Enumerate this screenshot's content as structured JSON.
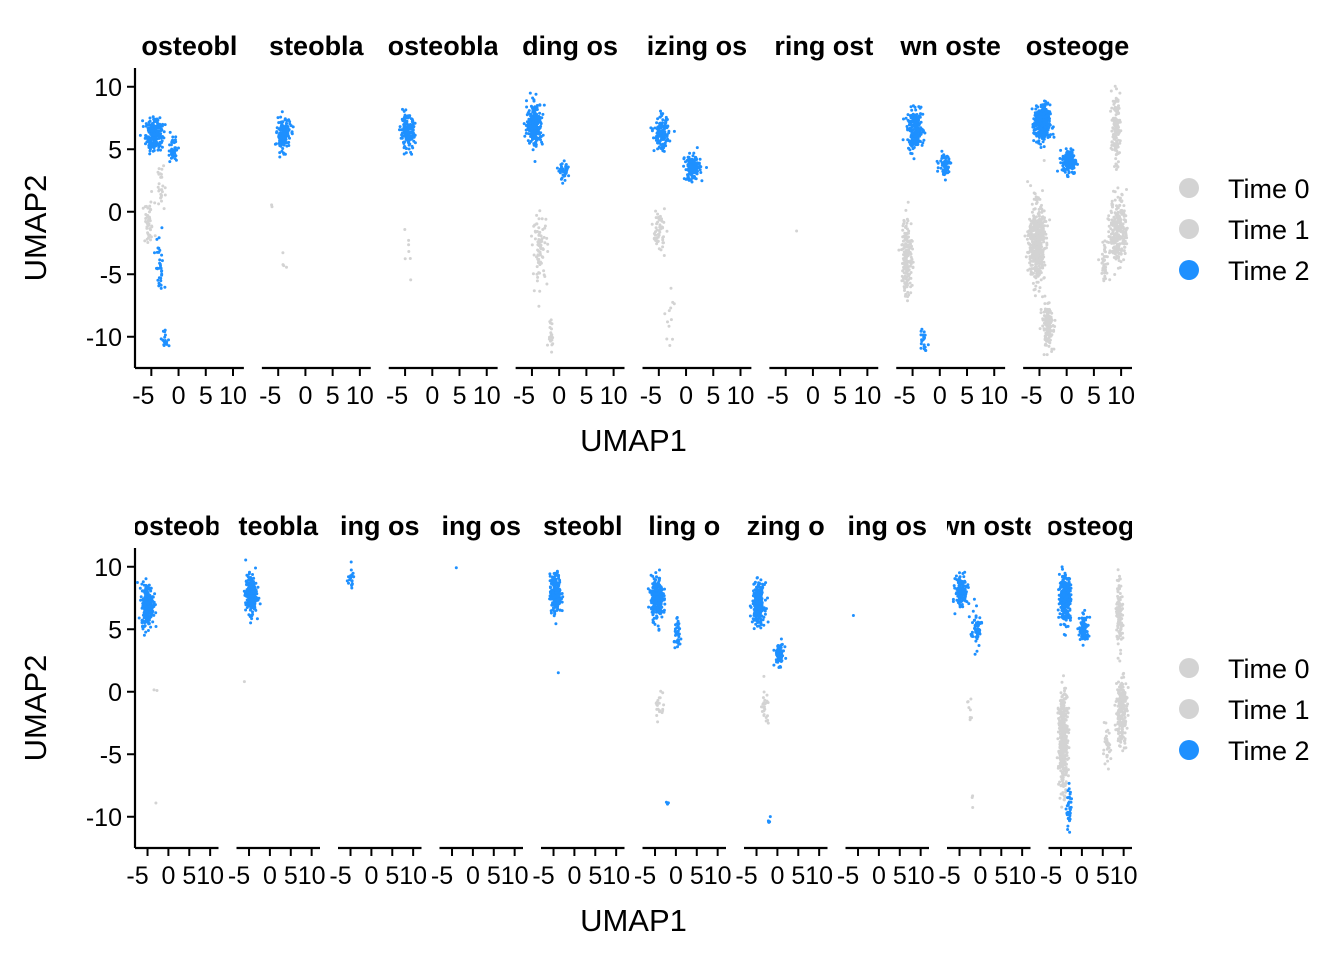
{
  "colors": {
    "time0": "#d3d3d3",
    "time1": "#d3d3d3",
    "time2": "#1e90ff",
    "axis": "#000000"
  },
  "legend": {
    "placement": "right",
    "entries": [
      "Time 0",
      "Time 1",
      "Time 2"
    ]
  },
  "chart_data": [
    {
      "type": "scatter",
      "xlabel": "UMAP1",
      "ylabel": "UMAP2",
      "xlim": [
        -8,
        12
      ],
      "ylim": [
        -12.5,
        11.5
      ],
      "x_ticks": [
        -5,
        0,
        5,
        10
      ],
      "x_tick_labels": [
        "-5",
        "0",
        "5",
        "10"
      ],
      "y_ticks": [
        -10,
        -5,
        0,
        5,
        10
      ],
      "y_tick_labels": [
        "-10",
        "-5",
        "0",
        "5",
        "10"
      ],
      "legend": [
        "Time 0",
        "Time 1",
        "Time 2"
      ],
      "panels": [
        {
          "title": "osteobl",
          "clusters": [
            {
              "t": 2,
              "x": -4.5,
              "y": 6.2,
              "sx": 1.4,
              "sy": 1.2,
              "n": 220
            },
            {
              "t": 2,
              "x": -1.0,
              "y": 5.0,
              "sx": 0.8,
              "sy": 0.9,
              "n": 40
            },
            {
              "t": 0,
              "x": -5.5,
              "y": -1.0,
              "sx": 1.0,
              "sy": 1.6,
              "n": 45
            },
            {
              "t": 0,
              "x": -3.2,
              "y": 2.0,
              "sx": 0.6,
              "sy": 1.5,
              "n": 25
            },
            {
              "t": 2,
              "x": -3.5,
              "y": -4.5,
              "sx": 0.7,
              "sy": 2.5,
              "n": 35
            },
            {
              "t": 2,
              "x": -2.5,
              "y": -10.2,
              "sx": 0.5,
              "sy": 0.8,
              "n": 18
            }
          ]
        },
        {
          "title": "steobla",
          "clusters": [
            {
              "t": 2,
              "x": -4.0,
              "y": 6.2,
              "sx": 1.1,
              "sy": 1.1,
              "n": 160
            },
            {
              "t": 0,
              "x": -6.5,
              "y": 0.3,
              "sx": 0.4,
              "sy": 0.4,
              "n": 2
            },
            {
              "t": 0,
              "x": -4.0,
              "y": -4.5,
              "sx": 0.6,
              "sy": 2.0,
              "n": 4
            }
          ]
        },
        {
          "title": "osteobla",
          "clusters": [
            {
              "t": 2,
              "x": -4.5,
              "y": 6.3,
              "sx": 1.2,
              "sy": 1.2,
              "n": 170
            },
            {
              "t": 0,
              "x": -4.5,
              "y": -3.5,
              "sx": 0.7,
              "sy": 2.0,
              "n": 7
            }
          ]
        },
        {
          "title": "ding os",
          "clusters": [
            {
              "t": 2,
              "x": -4.5,
              "y": 7.0,
              "sx": 1.3,
              "sy": 1.6,
              "n": 240
            },
            {
              "t": 2,
              "x": 1.0,
              "y": 3.2,
              "sx": 0.8,
              "sy": 0.6,
              "n": 40
            },
            {
              "t": 0,
              "x": -3.5,
              "y": -3.0,
              "sx": 1.2,
              "sy": 2.5,
              "n": 80
            },
            {
              "t": 0,
              "x": -1.5,
              "y": -9.5,
              "sx": 0.5,
              "sy": 1.2,
              "n": 20
            }
          ]
        },
        {
          "title": "izing os",
          "clusters": [
            {
              "t": 2,
              "x": -4.5,
              "y": 6.2,
              "sx": 1.2,
              "sy": 1.2,
              "n": 140
            },
            {
              "t": 2,
              "x": 1.2,
              "y": 3.5,
              "sx": 1.3,
              "sy": 0.9,
              "n": 160
            },
            {
              "t": 0,
              "x": -5.0,
              "y": -1.5,
              "sx": 1.0,
              "sy": 1.5,
              "n": 55
            },
            {
              "t": 0,
              "x": -3.0,
              "y": -8.0,
              "sx": 1.0,
              "sy": 2.0,
              "n": 12
            }
          ]
        },
        {
          "title": "ring ost",
          "clusters": [
            {
              "t": 0,
              "x": -3.0,
              "y": -1.8,
              "sx": 0.2,
              "sy": 0.2,
              "n": 1
            }
          ]
        },
        {
          "title": "wn oste",
          "clusters": [
            {
              "t": 2,
              "x": -4.5,
              "y": 6.5,
              "sx": 1.3,
              "sy": 1.4,
              "n": 200
            },
            {
              "t": 2,
              "x": 1.0,
              "y": 3.8,
              "sx": 1.0,
              "sy": 0.8,
              "n": 70
            },
            {
              "t": 0,
              "x": -6.0,
              "y": -3.5,
              "sx": 0.9,
              "sy": 3.0,
              "n": 170
            },
            {
              "t": 2,
              "x": -3.0,
              "y": -10.0,
              "sx": 0.6,
              "sy": 1.0,
              "n": 22
            }
          ]
        },
        {
          "title": "osteoge",
          "clusters": [
            {
              "t": 2,
              "x": -4.5,
              "y": 7.0,
              "sx": 1.3,
              "sy": 1.4,
              "n": 320
            },
            {
              "t": 2,
              "x": 0.5,
              "y": 4.0,
              "sx": 1.2,
              "sy": 0.9,
              "n": 160
            },
            {
              "t": 0,
              "x": -5.5,
              "y": -2.5,
              "sx": 1.3,
              "sy": 2.8,
              "n": 500
            },
            {
              "t": 0,
              "x": -3.5,
              "y": -9.0,
              "sx": 0.9,
              "sy": 1.6,
              "n": 150
            },
            {
              "t": 0,
              "x": 9.0,
              "y": 6.5,
              "sx": 0.7,
              "sy": 2.5,
              "n": 130
            },
            {
              "t": 0,
              "x": 9.5,
              "y": -1.5,
              "sx": 1.4,
              "sy": 2.5,
              "n": 250
            },
            {
              "t": 0,
              "x": 7.0,
              "y": -4.0,
              "sx": 0.7,
              "sy": 1.5,
              "n": 40
            }
          ]
        }
      ]
    },
    {
      "type": "scatter",
      "xlabel": "UMAP1",
      "ylabel": "UMAP2",
      "xlim": [
        -8,
        12
      ],
      "ylim": [
        -12.5,
        11.5
      ],
      "x_ticks": [
        -5,
        0,
        5,
        10
      ],
      "x_tick_labels": [
        "-5",
        "0",
        "5",
        "10"
      ],
      "y_ticks": [
        -10,
        -5,
        0,
        5,
        10
      ],
      "y_tick_labels": [
        "-10",
        "-5",
        "0",
        "5",
        "10"
      ],
      "legend": [
        "Time 0",
        "Time 1",
        "Time 2"
      ],
      "panels": [
        {
          "title": "osteob",
          "clusters": [
            {
              "t": 2,
              "x": -5.0,
              "y": 7.0,
              "sx": 1.3,
              "sy": 1.5,
              "n": 260
            },
            {
              "t": 0,
              "x": -3.0,
              "y": 0.0,
              "sx": 0.4,
              "sy": 0.5,
              "n": 2
            },
            {
              "t": 0,
              "x": -3.0,
              "y": -9.0,
              "sx": 0.2,
              "sy": 0.2,
              "n": 1
            }
          ]
        },
        {
          "title": "teobla",
          "clusters": [
            {
              "t": 2,
              "x": -4.5,
              "y": 7.8,
              "sx": 1.2,
              "sy": 1.4,
              "n": 260
            },
            {
              "t": 0,
              "x": -6.0,
              "y": 0.8,
              "sx": 0.2,
              "sy": 0.2,
              "n": 1
            }
          ]
        },
        {
          "title": "ing os",
          "clusters": [
            {
              "t": 2,
              "x": -5.0,
              "y": 9.0,
              "sx": 0.8,
              "sy": 0.7,
              "n": 20
            }
          ]
        },
        {
          "title": "ing os",
          "clusters": [
            {
              "t": 2,
              "x": -4.0,
              "y": 10.0,
              "sx": 0.2,
              "sy": 0.2,
              "n": 1
            }
          ]
        },
        {
          "title": "steobl",
          "clusters": [
            {
              "t": 2,
              "x": -4.5,
              "y": 7.8,
              "sx": 1.2,
              "sy": 1.4,
              "n": 230
            },
            {
              "t": 2,
              "x": -4.0,
              "y": 1.3,
              "sx": 0.3,
              "sy": 0.3,
              "n": 1
            }
          ]
        },
        {
          "title": "ling o",
          "clusters": [
            {
              "t": 2,
              "x": -4.5,
              "y": 7.5,
              "sx": 1.3,
              "sy": 1.5,
              "n": 260
            },
            {
              "t": 2,
              "x": 0.5,
              "y": 4.5,
              "sx": 0.8,
              "sy": 1.0,
              "n": 40
            },
            {
              "t": 0,
              "x": -4.0,
              "y": -1.0,
              "sx": 0.9,
              "sy": 1.3,
              "n": 20
            },
            {
              "t": 2,
              "x": -2.0,
              "y": -9.0,
              "sx": 0.3,
              "sy": 0.3,
              "n": 3
            }
          ]
        },
        {
          "title": "zing o",
          "clusters": [
            {
              "t": 2,
              "x": -4.5,
              "y": 7.0,
              "sx": 1.3,
              "sy": 1.5,
              "n": 240
            },
            {
              "t": 2,
              "x": 0.5,
              "y": 3.0,
              "sx": 1.0,
              "sy": 0.8,
              "n": 80
            },
            {
              "t": 0,
              "x": -3.0,
              "y": -1.5,
              "sx": 1.0,
              "sy": 1.5,
              "n": 25
            },
            {
              "t": 2,
              "x": -2.0,
              "y": -10.3,
              "sx": 0.3,
              "sy": 0.4,
              "n": 5
            }
          ]
        },
        {
          "title": "ing os",
          "clusters": [
            {
              "t": 2,
              "x": -6.0,
              "y": 6.2,
              "sx": 0.2,
              "sy": 0.2,
              "n": 1
            }
          ]
        },
        {
          "title": "wn oste",
          "clusters": [
            {
              "t": 2,
              "x": -4.5,
              "y": 8.0,
              "sx": 1.3,
              "sy": 1.2,
              "n": 140
            },
            {
              "t": 2,
              "x": -1.0,
              "y": 5.0,
              "sx": 1.2,
              "sy": 1.3,
              "n": 60
            },
            {
              "t": 0,
              "x": -2.5,
              "y": -1.5,
              "sx": 0.5,
              "sy": 1.5,
              "n": 8
            },
            {
              "t": 0,
              "x": -2.0,
              "y": -9.0,
              "sx": 0.3,
              "sy": 0.6,
              "n": 3
            }
          ]
        },
        {
          "title": "osteog",
          "clusters": [
            {
              "t": 2,
              "x": -4.0,
              "y": 7.5,
              "sx": 1.2,
              "sy": 1.6,
              "n": 300
            },
            {
              "t": 2,
              "x": 0.5,
              "y": 5.0,
              "sx": 1.0,
              "sy": 1.0,
              "n": 100
            },
            {
              "t": 0,
              "x": -4.5,
              "y": -4.0,
              "sx": 1.0,
              "sy": 3.5,
              "n": 360
            },
            {
              "t": 2,
              "x": -3.0,
              "y": -9.5,
              "sx": 0.6,
              "sy": 1.5,
              "n": 40
            },
            {
              "t": 0,
              "x": 9.0,
              "y": 6.5,
              "sx": 0.7,
              "sy": 2.5,
              "n": 120
            },
            {
              "t": 0,
              "x": 9.5,
              "y": -1.5,
              "sx": 1.2,
              "sy": 2.5,
              "n": 220
            },
            {
              "t": 0,
              "x": 6.0,
              "y": -4.5,
              "sx": 0.8,
              "sy": 1.3,
              "n": 35
            }
          ]
        }
      ]
    }
  ]
}
